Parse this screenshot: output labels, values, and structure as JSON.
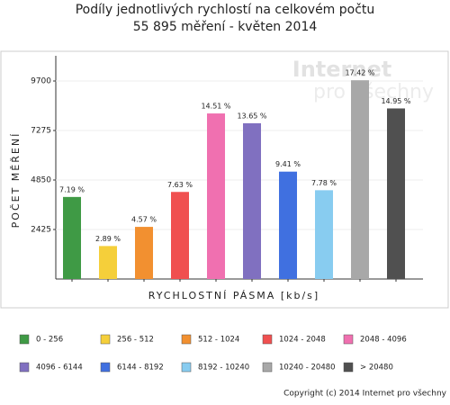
{
  "chart_data": {
    "type": "bar",
    "title": [
      "Podíly jednotlivých rychlostí na celkovém počtu",
      "55 895 měření - květen 2014"
    ],
    "watermark": [
      "Internet",
      "pro všechny"
    ],
    "ylabel": "POČET MĚŘENÍ",
    "xlabel": "RYCHLOSTNÍ PÁSMA [kb/s]",
    "categories": [
      "0 - 256",
      "256 - 512",
      "512 - 1024",
      "1024 - 2048",
      "2048 - 4096",
      "4096 - 6144",
      "6144 - 8192",
      "8192 - 10240",
      "10240 - 20480",
      "> 20480"
    ],
    "values": [
      4019,
      1615,
      2554,
      4265,
      8110,
      7630,
      5260,
      4349,
      9737,
      8356
    ],
    "percent_labels": [
      "7.19 %",
      "2.89 %",
      "4.57 %",
      "7.63 %",
      "14.51 %",
      "13.65 %",
      "9.41 %",
      "7.78 %",
      "17.42 %",
      "14.95 %"
    ],
    "colors": [
      "#3f9a45",
      "#f5cf3a",
      "#f29030",
      "#f05050",
      "#f070b0",
      "#8070c0",
      "#4070e0",
      "#88ccf0",
      "#a8a8a8",
      "#505050"
    ],
    "ylim": [
      0,
      11100
    ],
    "yticks": [
      2425,
      4850,
      7275,
      9700
    ],
    "footer": "Copyright (c) 2014 Internet pro všechny"
  }
}
